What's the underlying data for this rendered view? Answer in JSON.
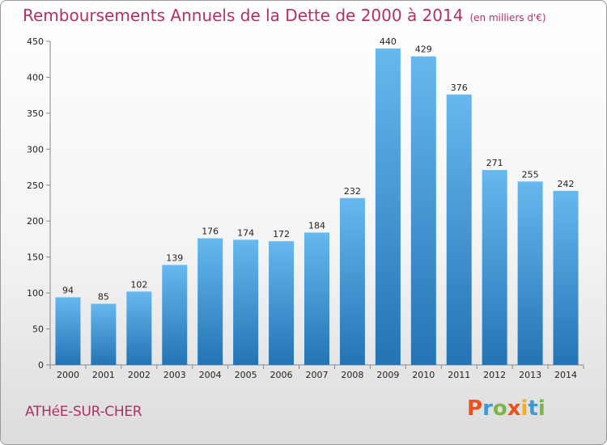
{
  "title": "Remboursements Annuels de la Dette de 2000 à 2014",
  "subtitle": "(en milliers d'€)",
  "commune": "ATHéE-SUR-CHER",
  "brand": {
    "letters": [
      "P",
      "r",
      "o",
      "x",
      "i",
      "t",
      "i"
    ],
    "colors": [
      "#e8541c",
      "#3a9ad9",
      "#7ab648",
      "#e8541c",
      "#f2b01e",
      "#3a9ad9",
      "#7ab648"
    ]
  },
  "colors": {
    "bar_light": "#66b8ee",
    "bar_dark": "#2474b5",
    "title": "#b0306a"
  },
  "chart_data": {
    "type": "bar",
    "title": "Remboursements Annuels de la Dette de 2000 à 2014",
    "subtitle": "(en milliers d'€)",
    "xlabel": "",
    "ylabel": "",
    "categories": [
      "2000",
      "2001",
      "2002",
      "2003",
      "2004",
      "2005",
      "2006",
      "2007",
      "2008",
      "2009",
      "2010",
      "2011",
      "2012",
      "2013",
      "2014"
    ],
    "values": [
      94,
      85,
      102,
      139,
      176,
      174,
      172,
      184,
      232,
      440,
      429,
      376,
      271,
      255,
      242
    ],
    "ylim": [
      0,
      450
    ],
    "yticks": [
      0,
      50,
      100,
      150,
      200,
      250,
      300,
      350,
      400,
      450
    ],
    "grid": false,
    "legend": "none"
  }
}
